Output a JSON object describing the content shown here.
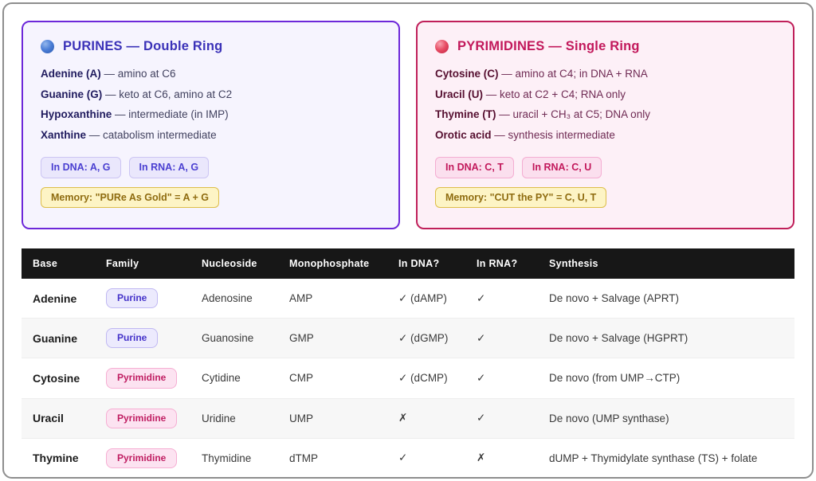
{
  "cards": [
    {
      "title": "PURINES — Double Ring",
      "icon": "blue-circle",
      "items": [
        {
          "name": "Adenine (A)",
          "desc": "— amino at C6"
        },
        {
          "name": "Guanine (G)",
          "desc": "— keto at C6, amino at C2"
        },
        {
          "name": "Hypoxanthine",
          "desc": "— intermediate (in IMP)"
        },
        {
          "name": "Xanthine",
          "desc": "— catabolism intermediate"
        }
      ],
      "badges": [
        "In DNA: A, G",
        "In RNA: A, G"
      ],
      "memory": "Memory: \"PURe As Gold\" = A + G"
    },
    {
      "title": "PYRIMIDINES — Single Ring",
      "icon": "red-circle",
      "items": [
        {
          "name": "Cytosine (C)",
          "desc": "— amino at C4; in DNA + RNA"
        },
        {
          "name": "Uracil (U)",
          "desc": "— keto at C2 + C4; RNA only"
        },
        {
          "name": "Thymine (T)",
          "desc": "— uracil + CH₃ at C5; DNA only"
        },
        {
          "name": "Orotic acid",
          "desc": "— synthesis intermediate"
        }
      ],
      "badges": [
        "In DNA: C, T",
        "In RNA: C, U"
      ],
      "memory": "Memory: \"CUT the PY\" = C, U, T"
    }
  ],
  "table": {
    "columns": [
      "Base",
      "Family",
      "Nucleoside",
      "Monophosphate",
      "In DNA?",
      "In RNA?",
      "Synthesis"
    ],
    "rows": [
      {
        "base": "Adenine",
        "family": "Purine",
        "nucleoside": "Adenosine",
        "mono": "AMP",
        "dna": "✓ (dAMP)",
        "rna": "✓",
        "synthesis": "De novo + Salvage (APRT)"
      },
      {
        "base": "Guanine",
        "family": "Purine",
        "nucleoside": "Guanosine",
        "mono": "GMP",
        "dna": "✓ (dGMP)",
        "rna": "✓",
        "synthesis": "De novo + Salvage (HGPRT)"
      },
      {
        "base": "Cytosine",
        "family": "Pyrimidine",
        "nucleoside": "Cytidine",
        "mono": "CMP",
        "dna": "✓ (dCMP)",
        "rna": "✓",
        "synthesis": "De novo (from UMP→CTP)"
      },
      {
        "base": "Uracil",
        "family": "Pyrimidine",
        "nucleoside": "Uridine",
        "mono": "UMP",
        "dna": "✗",
        "rna": "✓",
        "synthesis": "De novo (UMP synthase)"
      },
      {
        "base": "Thymine",
        "family": "Pyrimidine",
        "nucleoside": "Thymidine",
        "mono": "dTMP",
        "dna": "✓",
        "rna": "✗",
        "synthesis": "dUMP + Thymidylate synthase (TS) + folate"
      }
    ]
  },
  "colors": {
    "purine_accent": "#6d28d9",
    "purine_title": "#3b32b8",
    "pyrimidine_accent": "#c0205a",
    "pyrimidine_title": "#c2185b",
    "badge_purple_text": "#4a3fd1",
    "badge_pink_text": "#c2185b",
    "memory_text": "#8f6c10",
    "memory_bg": "#fdf4c5",
    "table_header_bg": "#171717",
    "row_stripe": "#f7f7f7"
  }
}
